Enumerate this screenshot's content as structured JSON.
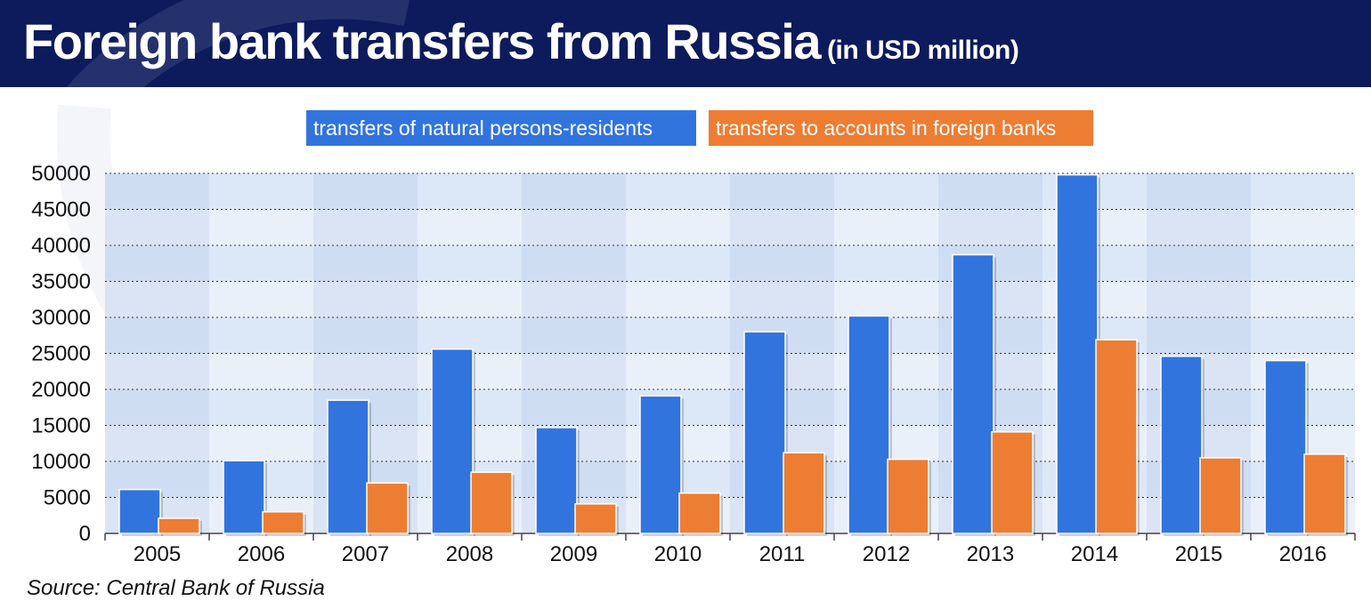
{
  "header": {
    "title": "Foreign bank transfers from Russia",
    "subtitle": "(in USD million)"
  },
  "legend": {
    "blue_label": "transfers of natural persons-residents",
    "orange_label": "transfers to accounts in foreign banks"
  },
  "source": "Source: Central Bank of Russia",
  "colors": {
    "header_bg": "#0d1a5c",
    "series_blue": "#3274de",
    "series_orange": "#ed7d33"
  },
  "chart_data": {
    "type": "bar",
    "title": "Foreign bank transfers from Russia",
    "subtitle": "(in USD million)",
    "xlabel": "",
    "ylabel": "",
    "categories": [
      "2005",
      "2006",
      "2007",
      "2008",
      "2009",
      "2010",
      "2011",
      "2012",
      "2013",
      "2014",
      "2015",
      "2016"
    ],
    "series": [
      {
        "name": "transfers of natural persons-residents",
        "color": "#3274de",
        "values": [
          6100,
          10100,
          18500,
          25600,
          14700,
          19100,
          28000,
          30200,
          38700,
          49800,
          24600,
          24000
        ]
      },
      {
        "name": "transfers to accounts in foreign banks",
        "color": "#ed7d33",
        "values": [
          2100,
          3000,
          7000,
          8500,
          4100,
          5600,
          11200,
          10300,
          14100,
          26900,
          10500,
          11000
        ]
      }
    ],
    "ylim": [
      0,
      50000
    ],
    "yticks": [
      0,
      5000,
      10000,
      15000,
      20000,
      25000,
      30000,
      35000,
      40000,
      45000,
      50000
    ],
    "grid": true,
    "legend_position": "top"
  }
}
